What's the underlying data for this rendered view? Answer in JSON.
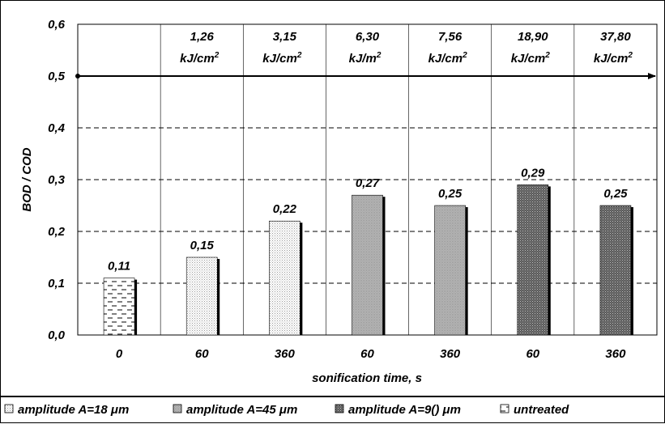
{
  "chart_data": {
    "type": "bar",
    "categories": [
      "0",
      "60",
      "360",
      "60",
      "360",
      "60",
      "360"
    ],
    "values": [
      0.11,
      0.15,
      0.22,
      0.27,
      0.25,
      0.29,
      0.25
    ],
    "value_labels": [
      "0,11",
      "0,15",
      "0,22",
      "0,27",
      "0,25",
      "0,29",
      "0,25"
    ],
    "bar_series": [
      "untreated",
      "a18",
      "a18",
      "a45",
      "a45",
      "a90",
      "a90"
    ],
    "energy_labels": [
      {
        "value": "",
        "unit": "",
        "exp": ""
      },
      {
        "value": "1,26",
        "unit": "kJ/cm",
        "exp": "2"
      },
      {
        "value": "3,15",
        "unit": "kJ/cm",
        "exp": "2"
      },
      {
        "value": "6,30",
        "unit": "kJ/m",
        "exp": "2"
      },
      {
        "value": "7,56",
        "unit": "kJ/cm",
        "exp": "2"
      },
      {
        "value": "18,90",
        "unit": "kJ/cm",
        "exp": "2"
      },
      {
        "value": "37,80",
        "unit": "kJ/cm",
        "exp": "2"
      }
    ],
    "ylabel": "BOD / COD",
    "xlabel": "sonification time, s",
    "ylim": [
      0,
      0.6
    ],
    "yticks": [
      0,
      0.1,
      0.2,
      0.3,
      0.4,
      0.5,
      0.6
    ],
    "ytick_labels": [
      "0,0",
      "0,1",
      "0,2",
      "0,3",
      "0,4",
      "0,5",
      "0,6"
    ],
    "reference_line": 0.5,
    "grid": true,
    "legend_position": "bottom",
    "legend": [
      {
        "key": "a18",
        "label": "amplitude A=18 μm"
      },
      {
        "key": "a45",
        "label": "amplitude A=45 μm"
      },
      {
        "key": "a90",
        "label": "amplitude A=9() μm"
      },
      {
        "key": "untreated",
        "label": "untreated"
      }
    ]
  }
}
